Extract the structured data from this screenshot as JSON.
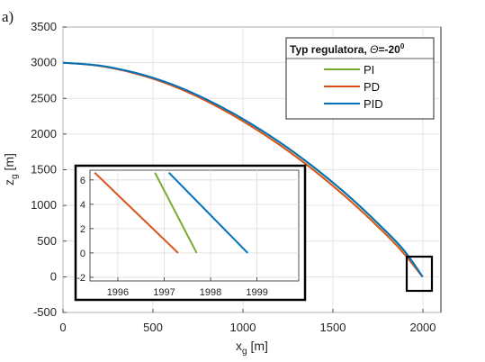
{
  "panel_label": "a)",
  "chart_data": [
    {
      "type": "line",
      "xlabel_main": "x",
      "xlabel_sub": "g",
      "xlabel_unit": " [m]",
      "ylabel_main": "z",
      "ylabel_sub": "g",
      "ylabel_unit": " [m]",
      "xlim": [
        0,
        2100
      ],
      "ylim": [
        -500,
        3500
      ],
      "xticks": [
        0,
        500,
        1000,
        1500,
        2000
      ],
      "yticks": [
        -500,
        0,
        500,
        1000,
        1500,
        2000,
        2500,
        3000,
        3500
      ],
      "grid": true,
      "legend": {
        "title_text": "Typ regulatora, ",
        "title_symbol": "Θ",
        "title_value": "=-20",
        "title_sup": "0",
        "placement": "top-right"
      },
      "series": [
        {
          "name": "PI",
          "color": "#77ac30",
          "x": [
            0,
            200,
            400,
            600,
            800,
            1000,
            1200,
            1400,
            1600,
            1800,
            1900,
            1997.7
          ],
          "y": [
            3000,
            2960,
            2860,
            2700,
            2480,
            2210,
            1890,
            1520,
            1100,
            620,
            350,
            0
          ]
        },
        {
          "name": "PD",
          "color": "#d95319",
          "x": [
            0,
            200,
            400,
            600,
            800,
            1000,
            1200,
            1400,
            1600,
            1800,
            1900,
            1997.3
          ],
          "y": [
            3000,
            2955,
            2850,
            2685,
            2460,
            2180,
            1855,
            1480,
            1055,
            580,
            310,
            0
          ]
        },
        {
          "name": "PID",
          "color": "#0072bd",
          "x": [
            0,
            200,
            400,
            600,
            800,
            1000,
            1200,
            1400,
            1600,
            1800,
            1900,
            1998.8
          ],
          "y": [
            3000,
            2960,
            2860,
            2702,
            2482,
            2212,
            1893,
            1524,
            1104,
            625,
            355,
            0
          ]
        }
      ]
    },
    {
      "type": "line",
      "role": "inset zoom",
      "xlim": [
        1995.4,
        1999.9
      ],
      "ylim": [
        -2.3,
        6.8
      ],
      "xticks": [
        1996,
        1997,
        1998,
        1999
      ],
      "yticks": [
        -2,
        0,
        2,
        4,
        6
      ],
      "grid": true,
      "series": [
        {
          "name": "PI",
          "color": "#77ac30",
          "x": [
            1996.8,
            1997.7
          ],
          "y": [
            6.6,
            0
          ]
        },
        {
          "name": "PD",
          "color": "#d95319",
          "x": [
            1995.5,
            1997.3
          ],
          "y": [
            6.6,
            0
          ]
        },
        {
          "name": "PID",
          "color": "#0072bd",
          "x": [
            1997.1,
            1998.8
          ],
          "y": [
            6.6,
            0
          ]
        }
      ]
    }
  ]
}
